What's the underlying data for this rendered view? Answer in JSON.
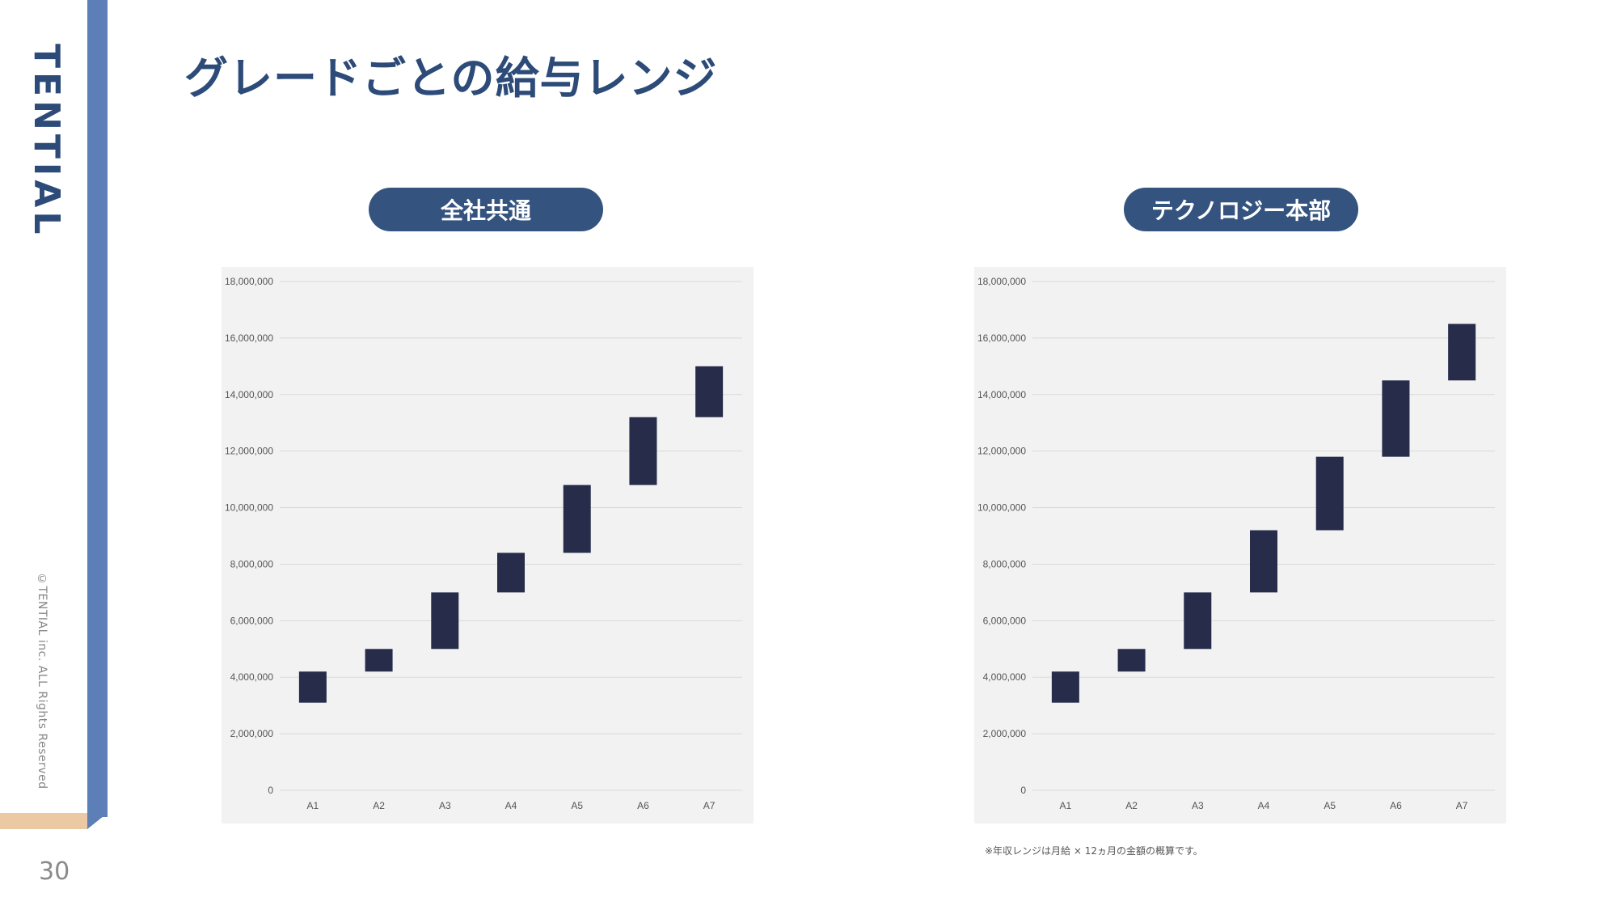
{
  "brand": {
    "logo_text": "TENTIAL",
    "copyright": "©TENTIAL inc. ALL Rights Reserved"
  },
  "page": {
    "title": "グレードごとの給与レンジ",
    "number": "30"
  },
  "note": "※年収レンジは月給 × 12ヵ月の金額の概算です。",
  "colors": {
    "bar": "#262c4a",
    "accent": "#34537f",
    "side_band": "#5b7fb6",
    "beige": "#ebc9a2"
  },
  "chart_data": [
    {
      "type": "bar",
      "title": "全社共通",
      "categories": [
        "A1",
        "A2",
        "A3",
        "A4",
        "A5",
        "A6",
        "A7"
      ],
      "series": [
        {
          "ranges": [
            [
              3100000,
              4200000
            ],
            [
              4200000,
              5000000
            ],
            [
              5000000,
              7000000
            ],
            [
              7000000,
              8400000
            ],
            [
              8400000,
              10800000
            ],
            [
              10800000,
              13200000
            ],
            [
              13200000,
              15000000
            ]
          ]
        }
      ],
      "ylim": [
        0,
        18000000
      ],
      "yticks": [
        "0",
        "2,000,000",
        "4,000,000",
        "6,000,000",
        "8,000,000",
        "10,000,000",
        "12,000,000",
        "14,000,000",
        "16,000,000",
        "18,000,000"
      ],
      "xlabel": "",
      "ylabel": "",
      "grid": true
    },
    {
      "type": "bar",
      "title": "テクノロジー本部",
      "categories": [
        "A1",
        "A2",
        "A3",
        "A4",
        "A5",
        "A6",
        "A7"
      ],
      "series": [
        {
          "ranges": [
            [
              3100000,
              4200000
            ],
            [
              4200000,
              5000000
            ],
            [
              5000000,
              7000000
            ],
            [
              7000000,
              9200000
            ],
            [
              9200000,
              11800000
            ],
            [
              11800000,
              14500000
            ],
            [
              14500000,
              16500000
            ]
          ]
        }
      ],
      "ylim": [
        0,
        18000000
      ],
      "yticks": [
        "0",
        "2,000,000",
        "4,000,000",
        "6,000,000",
        "8,000,000",
        "10,000,000",
        "12,000,000",
        "14,000,000",
        "16,000,000",
        "18,000,000"
      ],
      "xlabel": "",
      "ylabel": "",
      "grid": true
    }
  ]
}
